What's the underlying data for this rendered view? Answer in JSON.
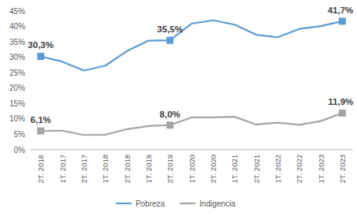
{
  "chart_data": {
    "type": "line",
    "categories": [
      "2T. 2016",
      "1T. 2017",
      "2T. 2017",
      "1T. 2018",
      "2T. 2018",
      "1T. 2019",
      "2T. 2019",
      "1T. 2020",
      "2T. 2020",
      "1T. 2021",
      "2T. 2021",
      "1T. 2022",
      "2T. 2022",
      "1T. 2023",
      "2T. 2023"
    ],
    "series": [
      {
        "name": "Pobreza",
        "color": "#5b9bd5",
        "marker": "square",
        "values": [
          30.3,
          28.6,
          25.7,
          27.3,
          32.0,
          35.4,
          35.5,
          40.9,
          42.0,
          40.6,
          37.3,
          36.5,
          39.2,
          40.1,
          41.7
        ],
        "value_labels": [
          "30,3%",
          null,
          null,
          null,
          null,
          null,
          "35,5%",
          null,
          null,
          null,
          null,
          null,
          null,
          null,
          "41,7%"
        ]
      },
      {
        "name": "Indigencia",
        "color": "#a5a5a5",
        "marker": "square",
        "values": [
          6.1,
          6.2,
          4.8,
          4.9,
          6.7,
          7.7,
          8.0,
          10.5,
          10.5,
          10.7,
          8.2,
          8.8,
          8.1,
          9.3,
          11.9
        ],
        "value_labels": [
          "6,1%",
          null,
          null,
          null,
          null,
          null,
          "8,0%",
          null,
          null,
          null,
          null,
          null,
          null,
          null,
          "11,9%"
        ]
      }
    ],
    "ylim": [
      0,
      45
    ],
    "yticks": [
      {
        "value": 0,
        "label": "0%"
      },
      {
        "value": 5,
        "label": "5%"
      },
      {
        "value": 10,
        "label": "10%"
      },
      {
        "value": 15,
        "label": "15%"
      },
      {
        "value": 20,
        "label": "20%"
      },
      {
        "value": 25,
        "label": "25%"
      },
      {
        "value": 30,
        "label": "30%"
      },
      {
        "value": 35,
        "label": "35%"
      },
      {
        "value": 40,
        "label": "40%"
      },
      {
        "value": 45,
        "label": "45%"
      }
    ],
    "grid": false,
    "legend": "bottom",
    "data_labels": true
  }
}
